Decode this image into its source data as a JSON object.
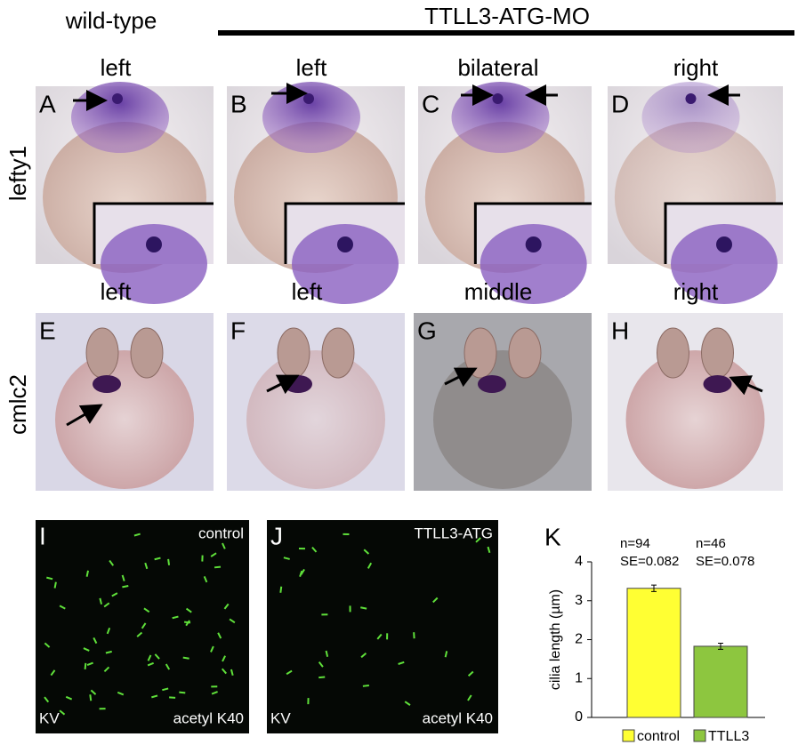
{
  "header": {
    "control_label": "wild-type",
    "treatment_label": "TTLL3-ATG-MO"
  },
  "rows": [
    {
      "gene": "lefty1"
    },
    {
      "gene": "cmlc2"
    }
  ],
  "panels": [
    {
      "letter": "A",
      "label": "left"
    },
    {
      "letter": "B",
      "label": "left"
    },
    {
      "letter": "C",
      "label": "bilateral"
    },
    {
      "letter": "D",
      "label": "right"
    },
    {
      "letter": "E",
      "label": "left"
    },
    {
      "letter": "F",
      "label": "left"
    },
    {
      "letter": "G",
      "label": "middle"
    },
    {
      "letter": "H",
      "label": "right"
    },
    {
      "letter": "I",
      "label": "control",
      "region": "KV",
      "stain": "acetyl K40"
    },
    {
      "letter": "J",
      "label": "TTLL3-ATG",
      "region": "KV",
      "stain": "acetyl K40"
    }
  ],
  "chart_data": {
    "type": "bar",
    "letter": "K",
    "ylabel": "cilia length (µm)",
    "categories": [
      "control",
      "TTLL3"
    ],
    "values": [
      3.32,
      1.83
    ],
    "errors": [
      0.082,
      0.078
    ],
    "colors": [
      "#ffff33",
      "#8dc63f"
    ],
    "annotations": [
      [
        "n=94",
        "SE=0.082"
      ],
      [
        "n=46",
        "SE=0.078"
      ]
    ],
    "ylim": [
      0,
      4
    ],
    "yticks": [
      0,
      1,
      2,
      3,
      4
    ]
  }
}
